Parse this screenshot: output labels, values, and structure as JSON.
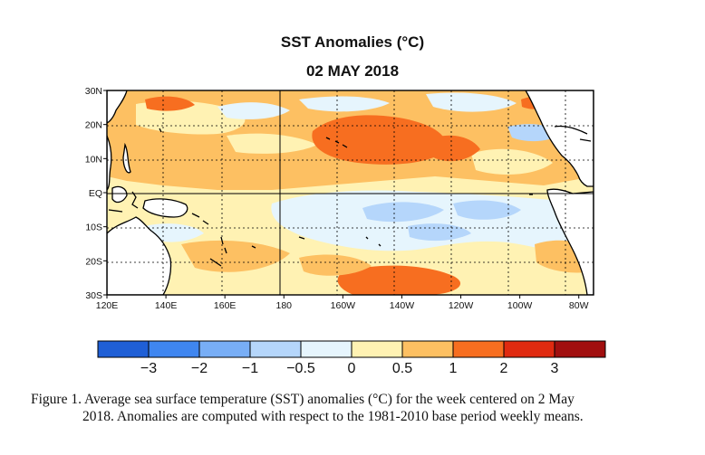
{
  "title": "SST Anomalies (°C)",
  "subtitle": "02 MAY 2018",
  "lat_labels": [
    {
      "label": "30N",
      "lat": 30
    },
    {
      "label": "20N",
      "lat": 20
    },
    {
      "label": "10N",
      "lat": 10
    },
    {
      "label": "EQ",
      "lat": 0
    },
    {
      "label": "10S",
      "lat": -10
    },
    {
      "label": "20S",
      "lat": -20
    },
    {
      "label": "30S",
      "lat": -30
    }
  ],
  "lon_labels": [
    {
      "label": "120E",
      "lon": 120
    },
    {
      "label": "140E",
      "lon": 140
    },
    {
      "label": "160E",
      "lon": 160
    },
    {
      "label": "180",
      "lon": 180
    },
    {
      "label": "160W",
      "lon": 200
    },
    {
      "label": "140W",
      "lon": 220
    },
    {
      "label": "120W",
      "lon": 240
    },
    {
      "label": "100W",
      "lon": 260
    },
    {
      "label": "80W",
      "lon": 280
    }
  ],
  "extent": {
    "lon": [
      120,
      285
    ],
    "lat": [
      -30,
      30
    ]
  },
  "colorbar": {
    "colors": [
      "#1f5fd6",
      "#3f86f0",
      "#78aef6",
      "#b5d6fb",
      "#e6f5fd",
      "#fff2b3",
      "#fdc062",
      "#f76e20",
      "#e02a10",
      "#a10f0f"
    ],
    "labels": [
      "−3",
      "−2",
      "−1",
      "−0.5",
      "0",
      "0.5",
      "1",
      "2",
      "3"
    ]
  },
  "caption": {
    "line1": "Figure 1. Average sea surface temperature (SST) anomalies (°C) for the week centered on 2 May",
    "line2": "2018.  Anomalies are computed with respect to the 1981-2010 base period weekly means."
  }
}
